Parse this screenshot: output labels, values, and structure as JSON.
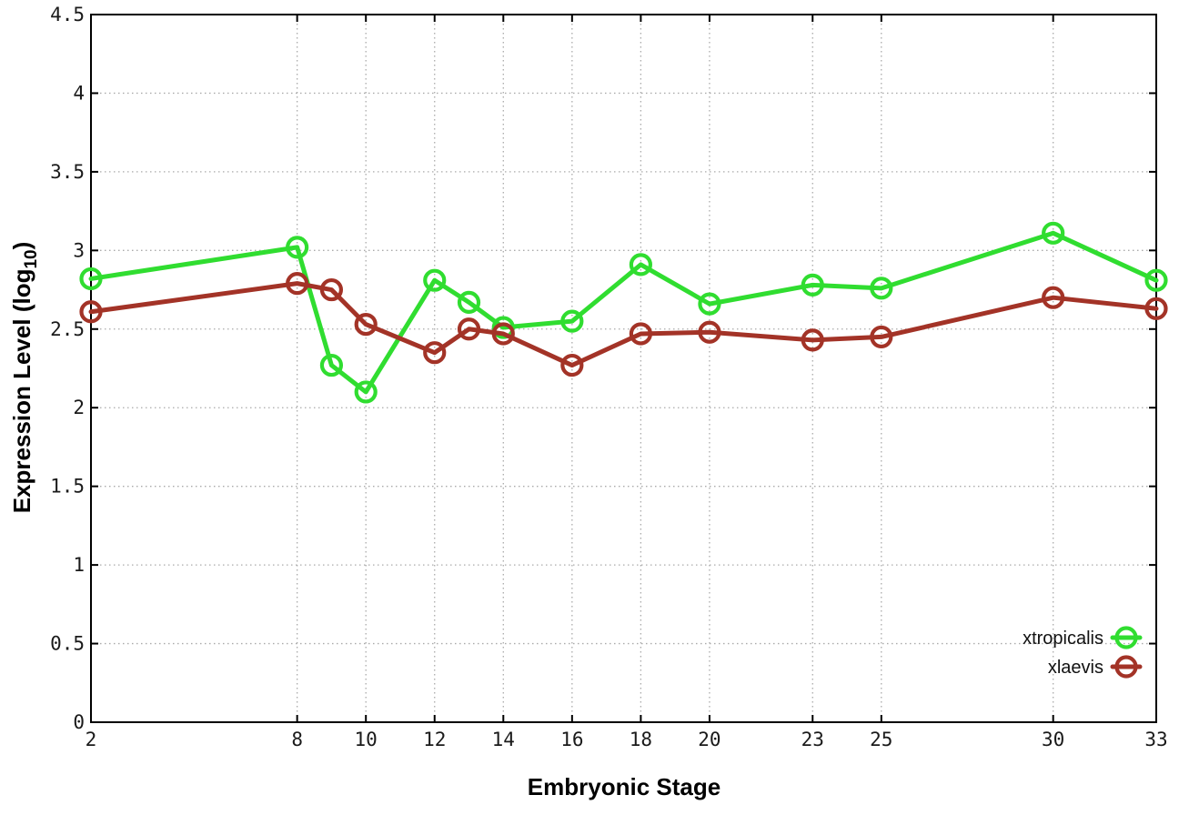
{
  "chart_data": {
    "type": "line",
    "title": "",
    "xlabel": "Embryonic Stage",
    "ylabel": "Expression Level (log10)",
    "ylabel_main": "Expression Level (log",
    "ylabel_sub": "10",
    "ylabel_end": ")",
    "x": [
      2,
      8,
      9,
      10,
      12,
      13,
      14,
      16,
      18,
      20,
      23,
      25,
      30,
      33
    ],
    "xlim": [
      2,
      33
    ],
    "ylim": [
      0,
      4.5
    ],
    "xticks": {
      "values": [
        2,
        8,
        10,
        12,
        14,
        16,
        18,
        20,
        23,
        25,
        30,
        33
      ],
      "labels": [
        "2",
        "8",
        "10",
        "12",
        "14",
        "16",
        "18",
        "20",
        "23",
        "25",
        "30",
        "33"
      ]
    },
    "yticks": {
      "values": [
        0,
        0.5,
        1,
        1.5,
        2,
        2.5,
        3,
        3.5,
        4,
        4.5
      ],
      "labels": [
        "0",
        "0.5",
        "1",
        "1.5",
        "2",
        "2.5",
        "3",
        "3.5",
        "4",
        "4.5"
      ]
    },
    "grid": "dotted",
    "legend": {
      "position": "bottom-right",
      "entries": [
        "xtropicalis",
        "xlaevis"
      ]
    },
    "series": [
      {
        "name": "xtropicalis",
        "color": "#30dd30",
        "marker": "open-circle",
        "values": [
          2.82,
          3.02,
          2.27,
          2.1,
          2.81,
          2.67,
          2.51,
          2.55,
          2.91,
          2.66,
          2.78,
          2.76,
          3.11,
          2.81
        ]
      },
      {
        "name": "xlaevis",
        "color": "#a33327",
        "marker": "open-circle",
        "values": [
          2.61,
          2.79,
          2.75,
          2.53,
          2.35,
          2.5,
          2.47,
          2.27,
          2.47,
          2.48,
          2.43,
          2.45,
          2.7,
          2.63
        ]
      }
    ],
    "colors": {
      "grid": "#aaaaaa",
      "border": "#000000",
      "tick": "#000000"
    }
  }
}
